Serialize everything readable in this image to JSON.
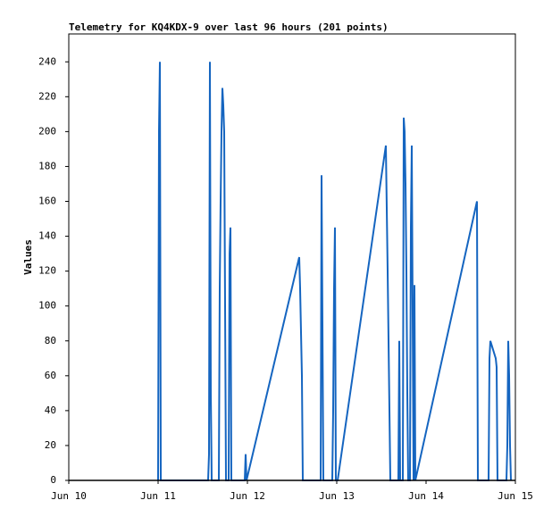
{
  "chart_data": {
    "type": "line",
    "title": "Telemetry for KQ4KDX-9 over last 96 hours (201 points)",
    "y_label": "Values",
    "color": "#1565c0",
    "xlim": [
      10,
      15
    ],
    "xticks": [
      {
        "value": 10,
        "label": "Jun 10"
      },
      {
        "value": 11,
        "label": "Jun 11"
      },
      {
        "value": 12,
        "label": "Jun 12"
      },
      {
        "value": 13,
        "label": "Jun 13"
      },
      {
        "value": 14,
        "label": "Jun 14"
      },
      {
        "value": 15,
        "label": "Jun 15"
      }
    ],
    "ylim": [
      0,
      256
    ],
    "yticks": [
      0,
      20,
      40,
      60,
      80,
      100,
      120,
      140,
      160,
      180,
      200,
      220,
      240
    ],
    "x": [
      11.0,
      11.01,
      11.02,
      11.03,
      11.56,
      11.57,
      11.58,
      11.59,
      11.6,
      11.68,
      11.69,
      11.7,
      11.71,
      11.72,
      11.73,
      11.74,
      11.75,
      11.76,
      11.79,
      11.8,
      11.81,
      11.82,
      11.97,
      11.98,
      11.99,
      12.58,
      12.59,
      12.61,
      12.62,
      12.82,
      12.83,
      12.84,
      12.85,
      12.95,
      12.96,
      12.97,
      12.98,
      12.99,
      13.01,
      13.55,
      13.57,
      13.59,
      13.6,
      13.69,
      13.7,
      13.71,
      13.74,
      13.75,
      13.76,
      13.77,
      13.78,
      13.79,
      13.8,
      13.82,
      13.83,
      13.84,
      13.85,
      13.86,
      13.87,
      13.88,
      14.57,
      14.58,
      14.7,
      14.71,
      14.72,
      14.78,
      14.79,
      14.8,
      14.9,
      14.91,
      14.92,
      14.93,
      14.94,
      14.95
    ],
    "values": [
      0,
      200,
      240,
      0,
      0,
      15,
      240,
      50,
      0,
      0,
      110,
      160,
      200,
      225,
      215,
      200,
      100,
      0,
      0,
      130,
      145,
      0,
      0,
      15,
      0,
      128,
      110,
      60,
      0,
      0,
      175,
      90,
      0,
      0,
      40,
      110,
      145,
      0,
      0,
      192,
      120,
      40,
      0,
      0,
      80,
      0,
      0,
      208,
      200,
      170,
      120,
      50,
      0,
      0,
      145,
      192,
      95,
      0,
      112,
      0,
      160,
      0,
      0,
      70,
      80,
      70,
      65,
      0,
      0,
      20,
      80,
      60,
      20,
      0
    ]
  }
}
